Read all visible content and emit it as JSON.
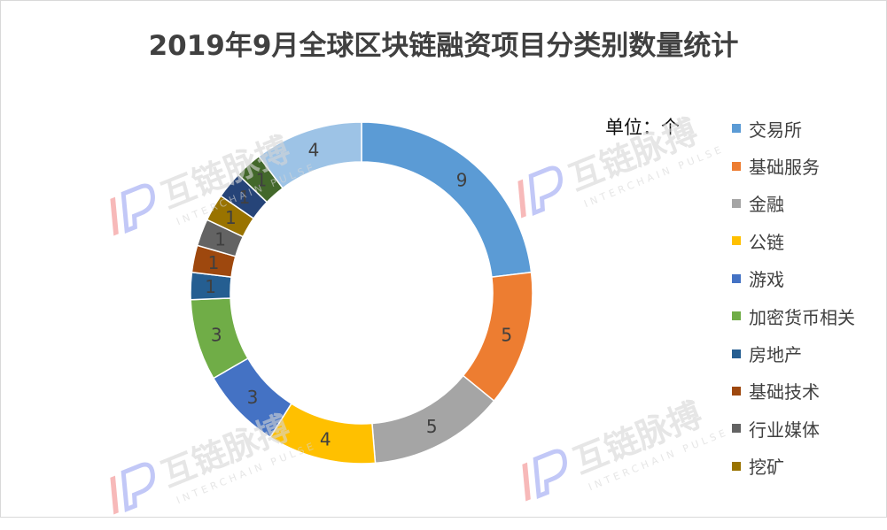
{
  "chart_data": {
    "type": "pie",
    "style": "donut",
    "title": "2019年9月全球区块链融资项目分类别数量统计",
    "unit_label": "单位：个",
    "legend_position": "right",
    "categories": [
      "交易所",
      "基础服务",
      "金融",
      "公链",
      "游戏",
      "加密货币相关",
      "房地产",
      "基础技术",
      "行业媒体",
      "挖矿",
      "",
      "",
      ""
    ],
    "legend_categories": [
      "交易所",
      "基础服务",
      "金融",
      "公链",
      "游戏",
      "加密货币相关",
      "房地产",
      "基础技术",
      "行业媒体",
      "挖矿"
    ],
    "values": [
      9,
      5,
      5,
      4,
      3,
      3,
      1,
      1,
      1,
      1,
      1,
      1,
      4
    ],
    "colors": [
      "#5b9bd5",
      "#ed7d31",
      "#a5a5a5",
      "#ffc000",
      "#4472c4",
      "#70ad47",
      "#255e91",
      "#9e480e",
      "#636363",
      "#997300",
      "#264478",
      "#43682b",
      "#9dc3e6"
    ]
  },
  "watermark": {
    "brand_cn": "互链脉搏",
    "brand_en": "INTERCHAIN PULSE",
    "colors": {
      "logo_red": "#f28b8b",
      "logo_blue": "#9aa4f2",
      "text": "#d6d6d6"
    }
  }
}
